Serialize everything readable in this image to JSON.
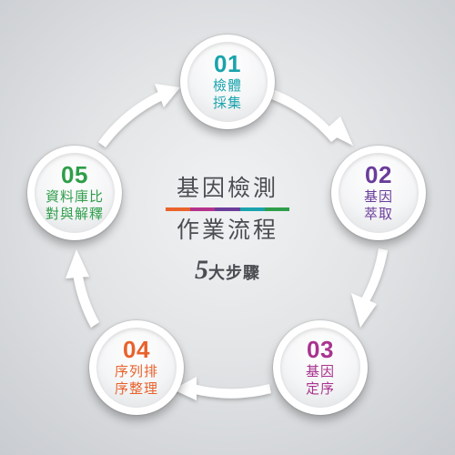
{
  "colors": {
    "teal": "#1aa3ad",
    "purple": "#6a3d9a",
    "magenta": "#a9338f",
    "orange": "#e8622c",
    "green": "#2f9e4a",
    "gray_text": "#4a4d52",
    "rule": [
      "#e9632b",
      "#b4338c",
      "#6a3d9a",
      "#1aa3ad",
      "#2f9e4a"
    ]
  },
  "center": {
    "title_line1": "基因檢測",
    "title_line2": "作業流程",
    "count": "5",
    "count_suffix": "大步驟"
  },
  "steps": [
    {
      "num": "01",
      "lines": [
        "檢體",
        "採集"
      ],
      "color": "#1aa3ad"
    },
    {
      "num": "02",
      "lines": [
        "基因",
        "萃取"
      ],
      "color": "#6a3d9a"
    },
    {
      "num": "03",
      "lines": [
        "基因",
        "定序"
      ],
      "color": "#a9338f"
    },
    {
      "num": "04",
      "lines": [
        "序列排",
        "序整理"
      ],
      "color": "#e8622c"
    },
    {
      "num": "05",
      "lines": [
        "資料庫比",
        "對與解釋"
      ],
      "color": "#2f9e4a"
    }
  ]
}
